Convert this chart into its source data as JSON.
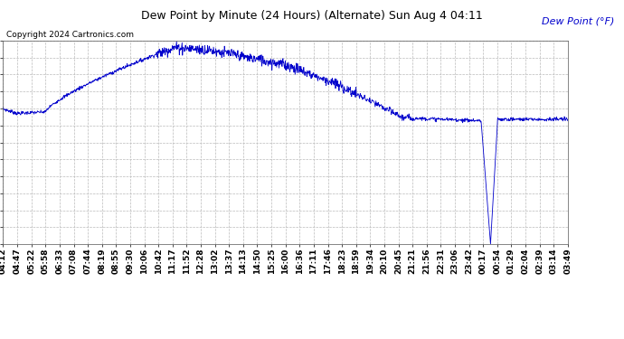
{
  "title": "Dew Point by Minute (24 Hours) (Alternate) Sun Aug 4 04:11",
  "ylabel": "Dew Point (°F)",
  "copyright": "Copyright 2024 Cartronics.com",
  "line_color": "#0000cc",
  "background_color": "#ffffff",
  "grid_color": "#bbbbbb",
  "ylabel_color": "#0000cc",
  "ylim": [
    25.1,
    94.2
  ],
  "yticks": [
    25.1,
    30.9,
    36.6,
    42.4,
    48.1,
    53.9,
    59.6,
    65.4,
    71.2,
    76.9,
    82.7,
    88.4,
    94.2
  ],
  "x_labels": [
    "04:12",
    "04:47",
    "05:22",
    "05:58",
    "06:33",
    "07:08",
    "07:44",
    "08:19",
    "08:55",
    "09:30",
    "10:06",
    "10:42",
    "11:17",
    "11:52",
    "12:28",
    "13:02",
    "13:37",
    "14:13",
    "14:50",
    "15:25",
    "16:00",
    "16:36",
    "17:11",
    "17:46",
    "18:23",
    "18:59",
    "19:34",
    "20:10",
    "20:45",
    "21:21",
    "21:56",
    "22:31",
    "23:06",
    "23:42",
    "00:17",
    "00:54",
    "01:29",
    "02:04",
    "02:39",
    "03:14",
    "03:49"
  ],
  "n_points": 1440,
  "title_fontsize": 9,
  "tick_fontsize": 7,
  "copyright_fontsize": 6.5,
  "ylabel_fontsize": 8
}
